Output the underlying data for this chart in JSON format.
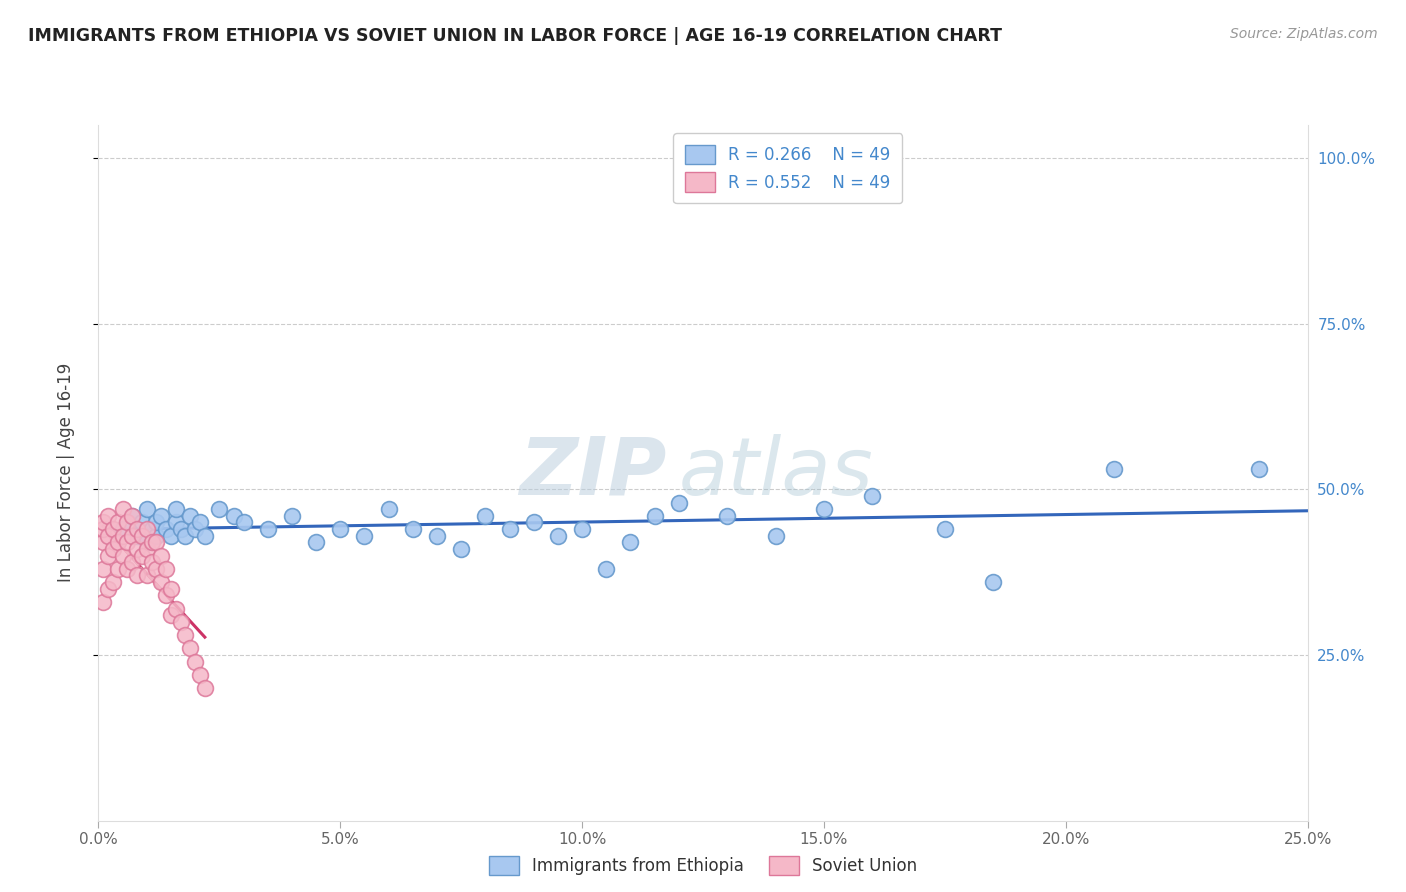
{
  "title": "IMMIGRANTS FROM ETHIOPIA VS SOVIET UNION IN LABOR FORCE | AGE 16-19 CORRELATION CHART",
  "source": "Source: ZipAtlas.com",
  "ylabel": "In Labor Force | Age 16-19",
  "xlim": [
    0.0,
    0.25
  ],
  "ylim": [
    0.0,
    1.05
  ],
  "xtick_labels": [
    "0.0%",
    "5.0%",
    "10.0%",
    "15.0%",
    "20.0%",
    "25.0%"
  ],
  "xtick_values": [
    0.0,
    0.05,
    0.1,
    0.15,
    0.2,
    0.25
  ],
  "ytick_labels": [
    "25.0%",
    "50.0%",
    "75.0%",
    "100.0%"
  ],
  "ytick_values": [
    0.25,
    0.5,
    0.75,
    1.0
  ],
  "ethiopia_R": 0.266,
  "ethiopia_N": 49,
  "soviet_R": 0.552,
  "soviet_N": 49,
  "ethiopia_color": "#a8c8f0",
  "ethiopia_edge": "#6699cc",
  "soviet_color": "#f5b8c8",
  "soviet_edge": "#dd7799",
  "ethiopia_line_color": "#3366bb",
  "soviet_line_color": "#cc3366",
  "soviet_dash_color": "#dd99aa",
  "watermark_zip": "ZIP",
  "watermark_atlas": "atlas",
  "ethiopia_x": [
    0.005,
    0.007,
    0.008,
    0.009,
    0.01,
    0.01,
    0.011,
    0.012,
    0.012,
    0.013,
    0.014,
    0.015,
    0.016,
    0.016,
    0.017,
    0.018,
    0.019,
    0.02,
    0.021,
    0.022,
    0.025,
    0.028,
    0.03,
    0.035,
    0.04,
    0.045,
    0.05,
    0.055,
    0.06,
    0.065,
    0.07,
    0.075,
    0.08,
    0.085,
    0.09,
    0.095,
    0.1,
    0.105,
    0.11,
    0.115,
    0.12,
    0.13,
    0.14,
    0.15,
    0.16,
    0.175,
    0.185,
    0.21,
    0.24
  ],
  "ethiopia_y": [
    0.44,
    0.46,
    0.43,
    0.45,
    0.42,
    0.47,
    0.44,
    0.43,
    0.45,
    0.46,
    0.44,
    0.43,
    0.45,
    0.47,
    0.44,
    0.43,
    0.46,
    0.44,
    0.45,
    0.43,
    0.47,
    0.46,
    0.45,
    0.44,
    0.46,
    0.42,
    0.44,
    0.43,
    0.47,
    0.44,
    0.43,
    0.41,
    0.46,
    0.44,
    0.45,
    0.43,
    0.44,
    0.38,
    0.42,
    0.46,
    0.48,
    0.46,
    0.43,
    0.47,
    0.49,
    0.44,
    0.36,
    0.53,
    0.53
  ],
  "soviet_x": [
    0.001,
    0.001,
    0.001,
    0.001,
    0.001,
    0.002,
    0.002,
    0.002,
    0.002,
    0.003,
    0.003,
    0.003,
    0.004,
    0.004,
    0.004,
    0.005,
    0.005,
    0.005,
    0.006,
    0.006,
    0.006,
    0.007,
    0.007,
    0.007,
    0.008,
    0.008,
    0.008,
    0.009,
    0.009,
    0.01,
    0.01,
    0.01,
    0.011,
    0.011,
    0.012,
    0.012,
    0.013,
    0.013,
    0.014,
    0.014,
    0.015,
    0.015,
    0.016,
    0.017,
    0.018,
    0.019,
    0.02,
    0.021,
    0.022
  ],
  "soviet_y": [
    0.42,
    0.44,
    0.45,
    0.38,
    0.33,
    0.43,
    0.46,
    0.4,
    0.35,
    0.44,
    0.41,
    0.36,
    0.45,
    0.42,
    0.38,
    0.47,
    0.43,
    0.4,
    0.45,
    0.42,
    0.38,
    0.46,
    0.43,
    0.39,
    0.44,
    0.41,
    0.37,
    0.43,
    0.4,
    0.44,
    0.41,
    0.37,
    0.42,
    0.39,
    0.42,
    0.38,
    0.4,
    0.36,
    0.38,
    0.34,
    0.35,
    0.31,
    0.32,
    0.3,
    0.28,
    0.26,
    0.24,
    0.22,
    0.2
  ]
}
